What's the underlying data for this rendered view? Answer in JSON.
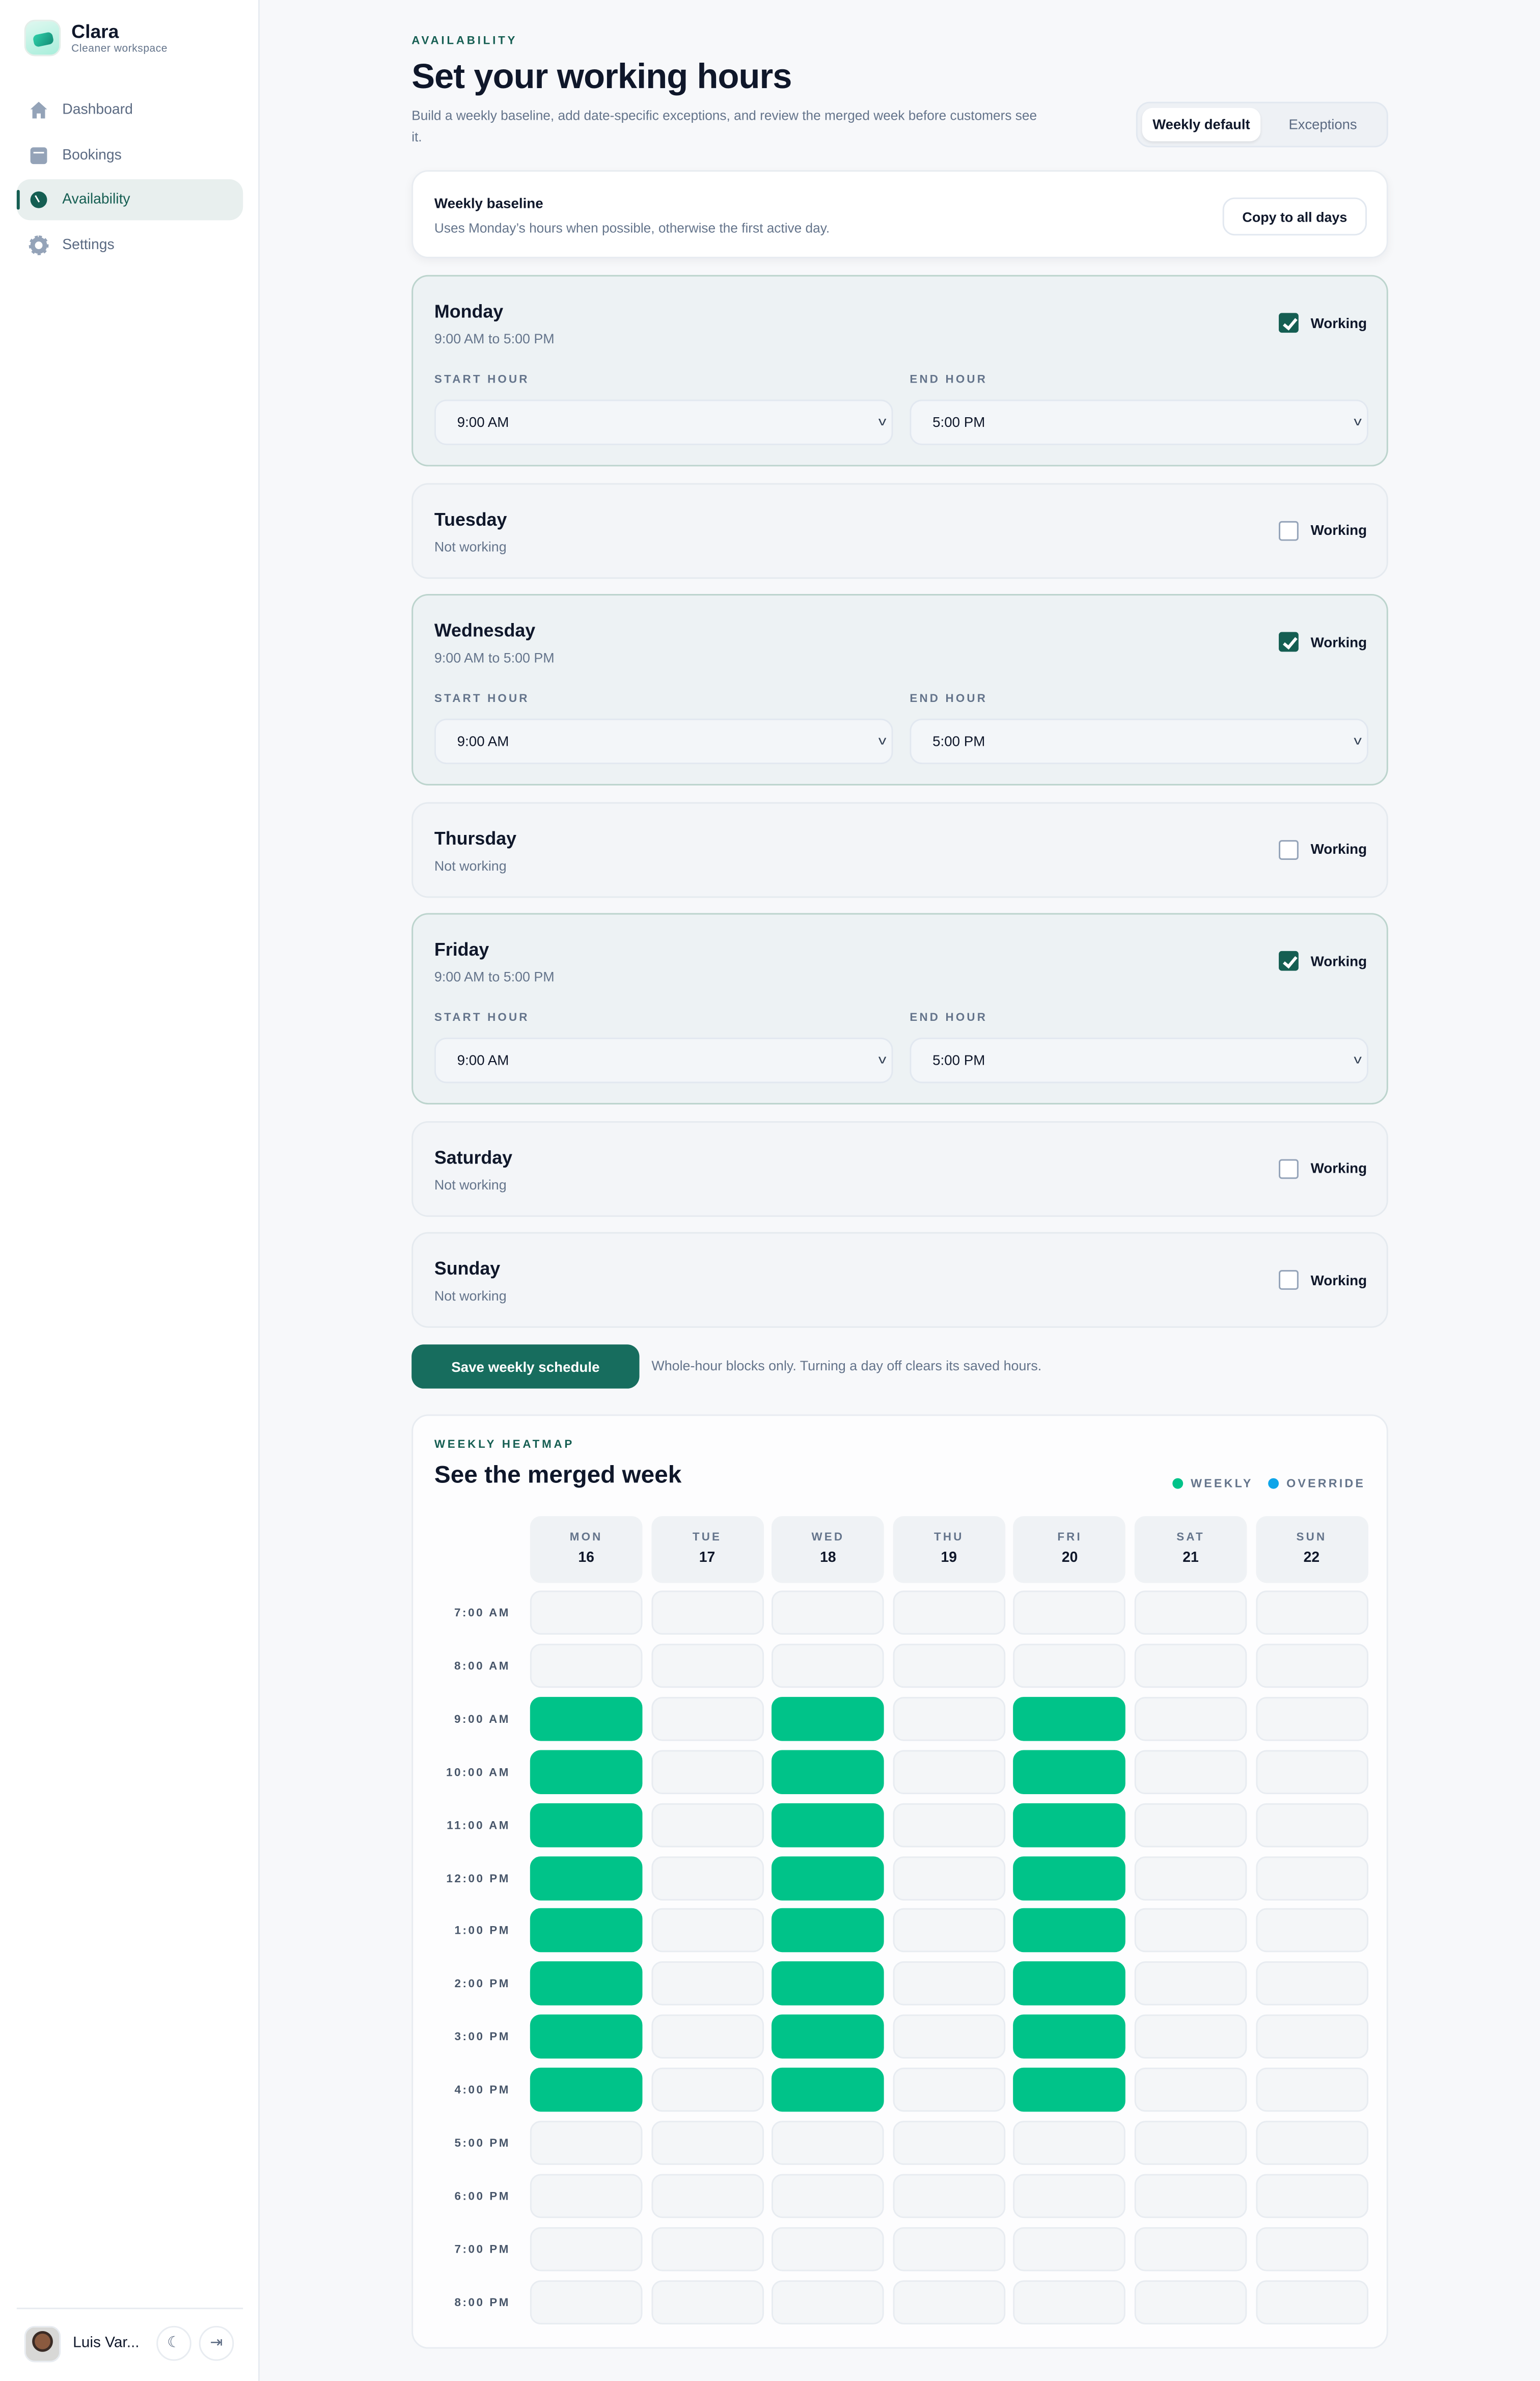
{
  "colors": {
    "accent": "#155e52",
    "weekly": "#00c389",
    "override": "#0ea5e9"
  },
  "sidebar": {
    "brand": "Clara",
    "subtitle": "Cleaner workspace",
    "items": [
      {
        "label": "Dashboard",
        "icon": "home-icon"
      },
      {
        "label": "Bookings",
        "icon": "calendar-icon"
      },
      {
        "label": "Availability",
        "icon": "clock-icon",
        "active": true
      },
      {
        "label": "Settings",
        "icon": "gear-icon"
      }
    ],
    "user": {
      "name": "Luis Var..."
    }
  },
  "header": {
    "eyebrow": "AVAILABILITY",
    "title": "Set your working hours",
    "description": "Build a weekly baseline, add date-specific exceptions, and review the merged week before customers see it.",
    "tabs": [
      {
        "label": "Weekly default",
        "active": true
      },
      {
        "label": "Exceptions"
      }
    ]
  },
  "baseline": {
    "title": "Weekly baseline",
    "description": "Uses Monday’s hours when possible, otherwise the first active day.",
    "copy_label": "Copy to all days"
  },
  "labels": {
    "working": "Working",
    "start_hour": "START HOUR",
    "end_hour": "END HOUR"
  },
  "days": [
    {
      "name": "Monday",
      "working": true,
      "summary": "9:00 AM to 5:00 PM",
      "start": "9:00 AM",
      "end": "5:00 PM"
    },
    {
      "name": "Tuesday",
      "working": false,
      "summary": "Not working"
    },
    {
      "name": "Wednesday",
      "working": true,
      "summary": "9:00 AM to 5:00 PM",
      "start": "9:00 AM",
      "end": "5:00 PM"
    },
    {
      "name": "Thursday",
      "working": false,
      "summary": "Not working"
    },
    {
      "name": "Friday",
      "working": true,
      "summary": "9:00 AM to 5:00 PM",
      "start": "9:00 AM",
      "end": "5:00 PM"
    },
    {
      "name": "Saturday",
      "working": false,
      "summary": "Not working"
    },
    {
      "name": "Sunday",
      "working": false,
      "summary": "Not working"
    }
  ],
  "save": {
    "label": "Save weekly schedule",
    "hint": "Whole-hour blocks only. Turning a day off clears its saved hours."
  },
  "heatmap": {
    "eyebrow": "WEEKLY HEATMAP",
    "title": "See the merged week",
    "legend": [
      "WEEKLY",
      "OVERRIDE"
    ],
    "columns": [
      {
        "day": "MON",
        "date": "16"
      },
      {
        "day": "TUE",
        "date": "17"
      },
      {
        "day": "WED",
        "date": "18"
      },
      {
        "day": "THU",
        "date": "19"
      },
      {
        "day": "FRI",
        "date": "20"
      },
      {
        "day": "SAT",
        "date": "21"
      },
      {
        "day": "SUN",
        "date": "22"
      }
    ],
    "rows": [
      "7:00 AM",
      "8:00 AM",
      "9:00 AM",
      "10:00 AM",
      "11:00 AM",
      "12:00 PM",
      "1:00 PM",
      "2:00 PM",
      "3:00 PM",
      "4:00 PM",
      "5:00 PM",
      "6:00 PM",
      "7:00 PM",
      "8:00 PM"
    ],
    "weekly_hours": {
      "MON": [
        "9:00 AM",
        "10:00 AM",
        "11:00 AM",
        "12:00 PM",
        "1:00 PM",
        "2:00 PM",
        "3:00 PM",
        "4:00 PM"
      ],
      "WED": [
        "9:00 AM",
        "10:00 AM",
        "11:00 AM",
        "12:00 PM",
        "1:00 PM",
        "2:00 PM",
        "3:00 PM",
        "4:00 PM"
      ],
      "FRI": [
        "9:00 AM",
        "10:00 AM",
        "11:00 AM",
        "12:00 PM",
        "1:00 PM",
        "2:00 PM",
        "3:00 PM",
        "4:00 PM"
      ]
    }
  }
}
